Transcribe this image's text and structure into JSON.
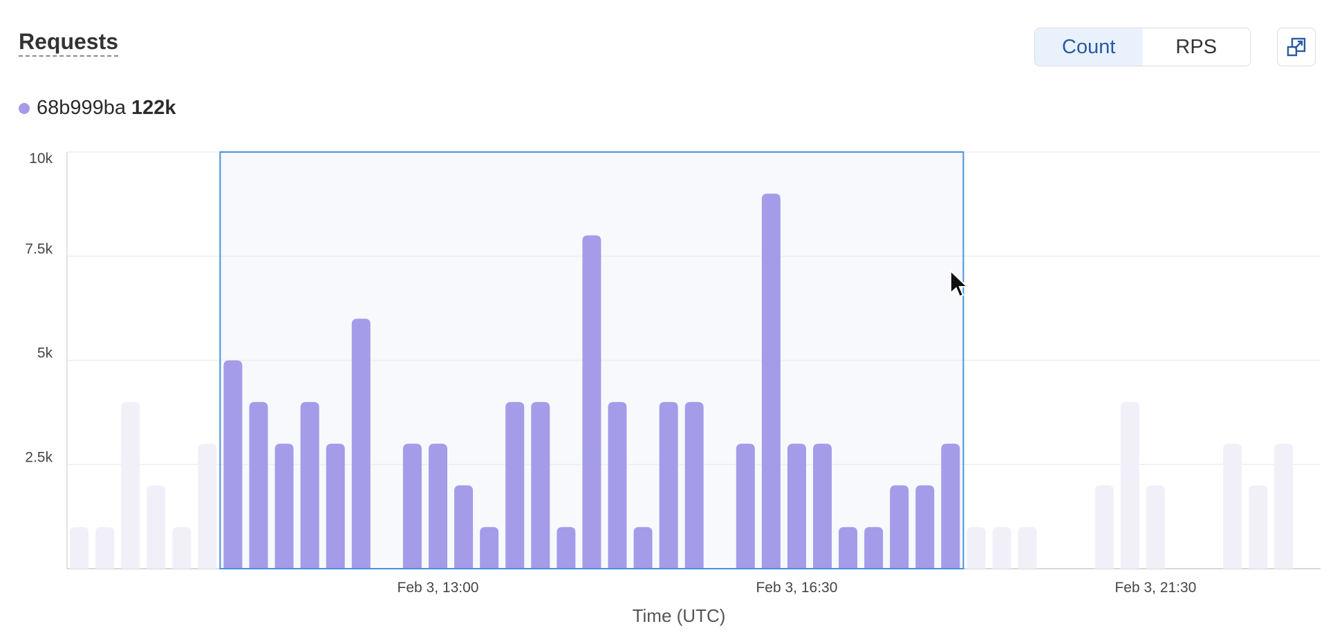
{
  "header": {
    "title": "Requests"
  },
  "toggle": {
    "options": [
      "Count",
      "RPS"
    ],
    "selected": "Count"
  },
  "expand_icon": "expand-icon",
  "legend": {
    "series": "68b999ba",
    "total": "122k",
    "color": "#a49ce9"
  },
  "chart_data": {
    "type": "bar",
    "xlabel": "Time (UTC)",
    "ylabel": "",
    "ylim": [
      0,
      10000
    ],
    "y_ticks": [
      "2.5k",
      "5k",
      "7.5k",
      "10k"
    ],
    "y_tick_values": [
      2500,
      5000,
      7500,
      10000
    ],
    "x_ticks": [
      "Feb 3, 13:00",
      "Feb 3, 16:30",
      "Feb 3, 21:30"
    ],
    "grid": true,
    "series": [
      {
        "name": "68b999ba",
        "values": [
          1000,
          1000,
          4000,
          2000,
          1000,
          3000,
          5000,
          4000,
          3000,
          4000,
          3000,
          6000,
          0,
          3000,
          3000,
          2000,
          1000,
          4000,
          4000,
          1000,
          8000,
          4000,
          1000,
          4000,
          4000,
          0,
          3000,
          9000,
          3000,
          3000,
          1000,
          1000,
          2000,
          2000,
          3000,
          1000,
          1000,
          1000,
          0,
          0,
          2000,
          4000,
          2000,
          0,
          0,
          3000,
          2000,
          3000
        ]
      }
    ],
    "selection": {
      "start_index": 6,
      "end_index": 34
    },
    "colors": {
      "bar": "#a49ce9",
      "bar_faded": "#f1f0f9",
      "selection_fill": "#f7f9fc",
      "selection_border": "#4a8fe0",
      "grid": "#eeeeee"
    }
  }
}
